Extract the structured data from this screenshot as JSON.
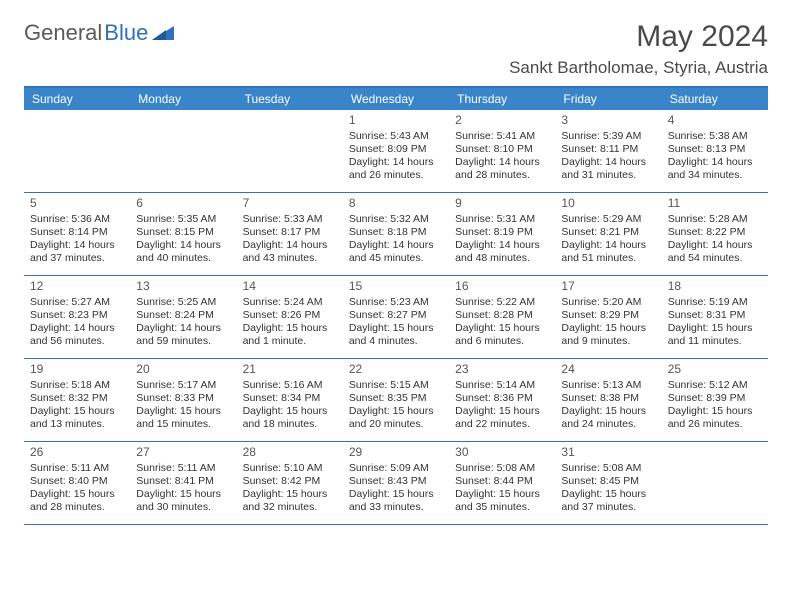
{
  "brand": {
    "word1": "General",
    "word2": "Blue"
  },
  "title": "May 2024",
  "location": "Sankt Bartholomae, Styria, Austria",
  "day_headers": [
    "Sunday",
    "Monday",
    "Tuesday",
    "Wednesday",
    "Thursday",
    "Friday",
    "Saturday"
  ],
  "colors": {
    "header_bar": "#3a85c9",
    "border": "#2F72B9",
    "text": "#333333",
    "title": "#4a4a4a",
    "logo_gray": "#5a5a5a",
    "logo_blue": "#2F72B9",
    "bg": "#ffffff"
  },
  "weeks": [
    [
      null,
      null,
      null,
      {
        "n": "1",
        "sunrise": "Sunrise: 5:43 AM",
        "sunset": "Sunset: 8:09 PM",
        "day1": "Daylight: 14 hours",
        "day2": "and 26 minutes."
      },
      {
        "n": "2",
        "sunrise": "Sunrise: 5:41 AM",
        "sunset": "Sunset: 8:10 PM",
        "day1": "Daylight: 14 hours",
        "day2": "and 28 minutes."
      },
      {
        "n": "3",
        "sunrise": "Sunrise: 5:39 AM",
        "sunset": "Sunset: 8:11 PM",
        "day1": "Daylight: 14 hours",
        "day2": "and 31 minutes."
      },
      {
        "n": "4",
        "sunrise": "Sunrise: 5:38 AM",
        "sunset": "Sunset: 8:13 PM",
        "day1": "Daylight: 14 hours",
        "day2": "and 34 minutes."
      }
    ],
    [
      {
        "n": "5",
        "sunrise": "Sunrise: 5:36 AM",
        "sunset": "Sunset: 8:14 PM",
        "day1": "Daylight: 14 hours",
        "day2": "and 37 minutes."
      },
      {
        "n": "6",
        "sunrise": "Sunrise: 5:35 AM",
        "sunset": "Sunset: 8:15 PM",
        "day1": "Daylight: 14 hours",
        "day2": "and 40 minutes."
      },
      {
        "n": "7",
        "sunrise": "Sunrise: 5:33 AM",
        "sunset": "Sunset: 8:17 PM",
        "day1": "Daylight: 14 hours",
        "day2": "and 43 minutes."
      },
      {
        "n": "8",
        "sunrise": "Sunrise: 5:32 AM",
        "sunset": "Sunset: 8:18 PM",
        "day1": "Daylight: 14 hours",
        "day2": "and 45 minutes."
      },
      {
        "n": "9",
        "sunrise": "Sunrise: 5:31 AM",
        "sunset": "Sunset: 8:19 PM",
        "day1": "Daylight: 14 hours",
        "day2": "and 48 minutes."
      },
      {
        "n": "10",
        "sunrise": "Sunrise: 5:29 AM",
        "sunset": "Sunset: 8:21 PM",
        "day1": "Daylight: 14 hours",
        "day2": "and 51 minutes."
      },
      {
        "n": "11",
        "sunrise": "Sunrise: 5:28 AM",
        "sunset": "Sunset: 8:22 PM",
        "day1": "Daylight: 14 hours",
        "day2": "and 54 minutes."
      }
    ],
    [
      {
        "n": "12",
        "sunrise": "Sunrise: 5:27 AM",
        "sunset": "Sunset: 8:23 PM",
        "day1": "Daylight: 14 hours",
        "day2": "and 56 minutes."
      },
      {
        "n": "13",
        "sunrise": "Sunrise: 5:25 AM",
        "sunset": "Sunset: 8:24 PM",
        "day1": "Daylight: 14 hours",
        "day2": "and 59 minutes."
      },
      {
        "n": "14",
        "sunrise": "Sunrise: 5:24 AM",
        "sunset": "Sunset: 8:26 PM",
        "day1": "Daylight: 15 hours",
        "day2": "and 1 minute."
      },
      {
        "n": "15",
        "sunrise": "Sunrise: 5:23 AM",
        "sunset": "Sunset: 8:27 PM",
        "day1": "Daylight: 15 hours",
        "day2": "and 4 minutes."
      },
      {
        "n": "16",
        "sunrise": "Sunrise: 5:22 AM",
        "sunset": "Sunset: 8:28 PM",
        "day1": "Daylight: 15 hours",
        "day2": "and 6 minutes."
      },
      {
        "n": "17",
        "sunrise": "Sunrise: 5:20 AM",
        "sunset": "Sunset: 8:29 PM",
        "day1": "Daylight: 15 hours",
        "day2": "and 9 minutes."
      },
      {
        "n": "18",
        "sunrise": "Sunrise: 5:19 AM",
        "sunset": "Sunset: 8:31 PM",
        "day1": "Daylight: 15 hours",
        "day2": "and 11 minutes."
      }
    ],
    [
      {
        "n": "19",
        "sunrise": "Sunrise: 5:18 AM",
        "sunset": "Sunset: 8:32 PM",
        "day1": "Daylight: 15 hours",
        "day2": "and 13 minutes."
      },
      {
        "n": "20",
        "sunrise": "Sunrise: 5:17 AM",
        "sunset": "Sunset: 8:33 PM",
        "day1": "Daylight: 15 hours",
        "day2": "and 15 minutes."
      },
      {
        "n": "21",
        "sunrise": "Sunrise: 5:16 AM",
        "sunset": "Sunset: 8:34 PM",
        "day1": "Daylight: 15 hours",
        "day2": "and 18 minutes."
      },
      {
        "n": "22",
        "sunrise": "Sunrise: 5:15 AM",
        "sunset": "Sunset: 8:35 PM",
        "day1": "Daylight: 15 hours",
        "day2": "and 20 minutes."
      },
      {
        "n": "23",
        "sunrise": "Sunrise: 5:14 AM",
        "sunset": "Sunset: 8:36 PM",
        "day1": "Daylight: 15 hours",
        "day2": "and 22 minutes."
      },
      {
        "n": "24",
        "sunrise": "Sunrise: 5:13 AM",
        "sunset": "Sunset: 8:38 PM",
        "day1": "Daylight: 15 hours",
        "day2": "and 24 minutes."
      },
      {
        "n": "25",
        "sunrise": "Sunrise: 5:12 AM",
        "sunset": "Sunset: 8:39 PM",
        "day1": "Daylight: 15 hours",
        "day2": "and 26 minutes."
      }
    ],
    [
      {
        "n": "26",
        "sunrise": "Sunrise: 5:11 AM",
        "sunset": "Sunset: 8:40 PM",
        "day1": "Daylight: 15 hours",
        "day2": "and 28 minutes."
      },
      {
        "n": "27",
        "sunrise": "Sunrise: 5:11 AM",
        "sunset": "Sunset: 8:41 PM",
        "day1": "Daylight: 15 hours",
        "day2": "and 30 minutes."
      },
      {
        "n": "28",
        "sunrise": "Sunrise: 5:10 AM",
        "sunset": "Sunset: 8:42 PM",
        "day1": "Daylight: 15 hours",
        "day2": "and 32 minutes."
      },
      {
        "n": "29",
        "sunrise": "Sunrise: 5:09 AM",
        "sunset": "Sunset: 8:43 PM",
        "day1": "Daylight: 15 hours",
        "day2": "and 33 minutes."
      },
      {
        "n": "30",
        "sunrise": "Sunrise: 5:08 AM",
        "sunset": "Sunset: 8:44 PM",
        "day1": "Daylight: 15 hours",
        "day2": "and 35 minutes."
      },
      {
        "n": "31",
        "sunrise": "Sunrise: 5:08 AM",
        "sunset": "Sunset: 8:45 PM",
        "day1": "Daylight: 15 hours",
        "day2": "and 37 minutes."
      },
      null
    ]
  ]
}
